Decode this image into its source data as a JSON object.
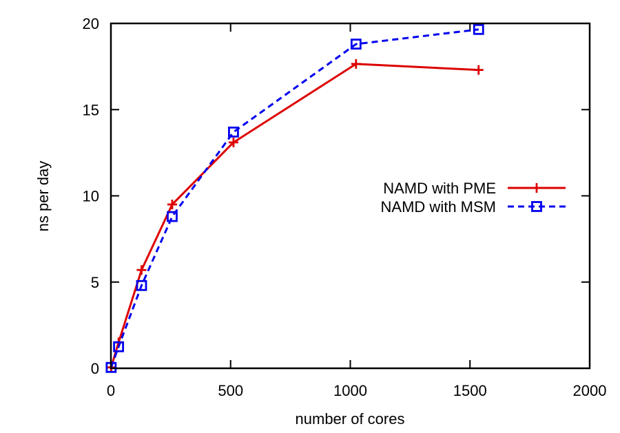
{
  "chart_data": {
    "type": "line",
    "title": "",
    "xlabel": "number of cores",
    "ylabel": "ns per day",
    "xlim": [
      0,
      2000
    ],
    "ylim": [
      0,
      20
    ],
    "xticks": [
      0,
      500,
      1000,
      1500,
      2000
    ],
    "yticks": [
      0,
      5,
      10,
      15,
      20
    ],
    "xtick_labels": [
      "0",
      "500",
      "1000",
      "1500",
      "2000"
    ],
    "ytick_labels": [
      "0",
      "5",
      "10",
      "15",
      "20"
    ],
    "grid": false,
    "legend_position": "center-right",
    "series": [
      {
        "name": "NAMD with PME",
        "color": "#dd0000",
        "line_style": "solid",
        "marker": "plus",
        "x": [
          1,
          32,
          128,
          256,
          512,
          1024,
          1536
        ],
        "y": [
          0.05,
          1.5,
          5.7,
          9.5,
          13.1,
          17.65,
          17.3
        ]
      },
      {
        "name": "NAMD with MSM",
        "color": "#0000ee",
        "line_style": "dashed",
        "marker": "square",
        "x": [
          1,
          32,
          128,
          256,
          512,
          1024,
          1536
        ],
        "y": [
          0.05,
          1.25,
          4.8,
          8.8,
          13.7,
          18.8,
          19.65
        ]
      }
    ]
  }
}
